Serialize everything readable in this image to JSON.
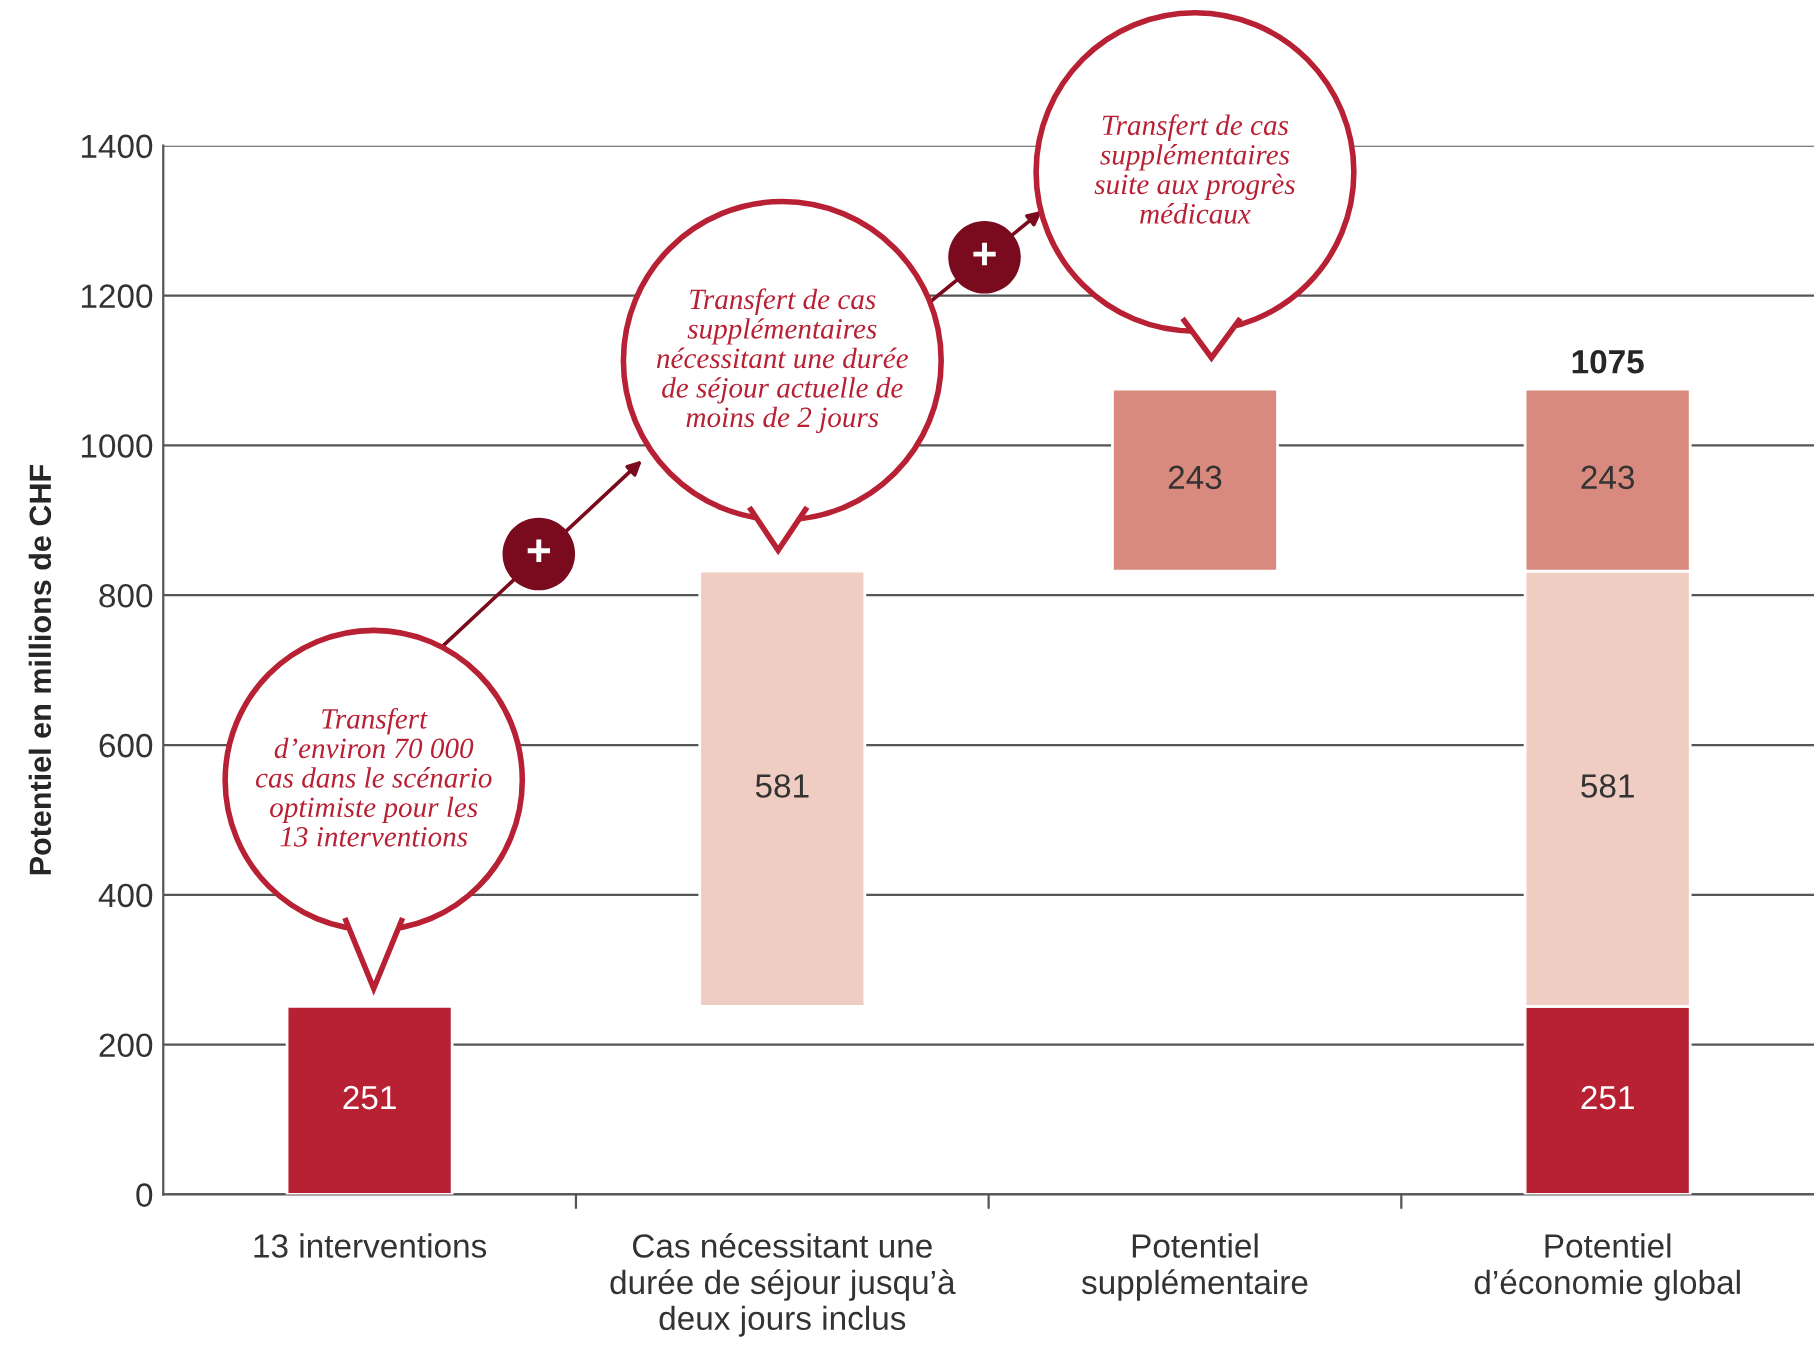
{
  "chart_data": {
    "type": "bar",
    "ylabel": "Potentiel en millions de CHF",
    "categories": [
      "13 interventions",
      "Cas nécessitant une\ndurée de séjour jusqu’à\ndeux jours inclus",
      "Potentiel\nsupplémentaire",
      "Potentiel\nd’économie global"
    ],
    "series": [
      {
        "color": "#b82034",
        "values": [
          251,
          null,
          null,
          251
        ],
        "base": [
          0,
          null,
          null,
          0
        ]
      },
      {
        "color": "#efcdc2",
        "values": [
          null,
          581,
          null,
          581
        ],
        "base": [
          null,
          251,
          null,
          251
        ]
      },
      {
        "color": "#d98a7e",
        "values": [
          null,
          null,
          243,
          243
        ],
        "base": [
          null,
          null,
          832,
          832
        ]
      }
    ],
    "totals": [
      null,
      null,
      null,
      "1075"
    ],
    "data_labels": true,
    "ylim": [
      0,
      1400
    ],
    "yticks": [
      0,
      200,
      400,
      600,
      800,
      1000,
      1200,
      1400
    ],
    "grid": "y",
    "legend": false,
    "annotations": [
      "Transfert\nd’environ 70 000\ncas dans le scénario\noptimiste pour les\n13 interventions",
      "Transfert de cas\nsupplémentaires\nnécessitant une durée\nde séjour actuelle de\nmoins de 2 jours",
      "Transfert de cas\nsupplémentaires\nsuite aux progrès\nmédicaux",
      "+",
      "+"
    ]
  }
}
